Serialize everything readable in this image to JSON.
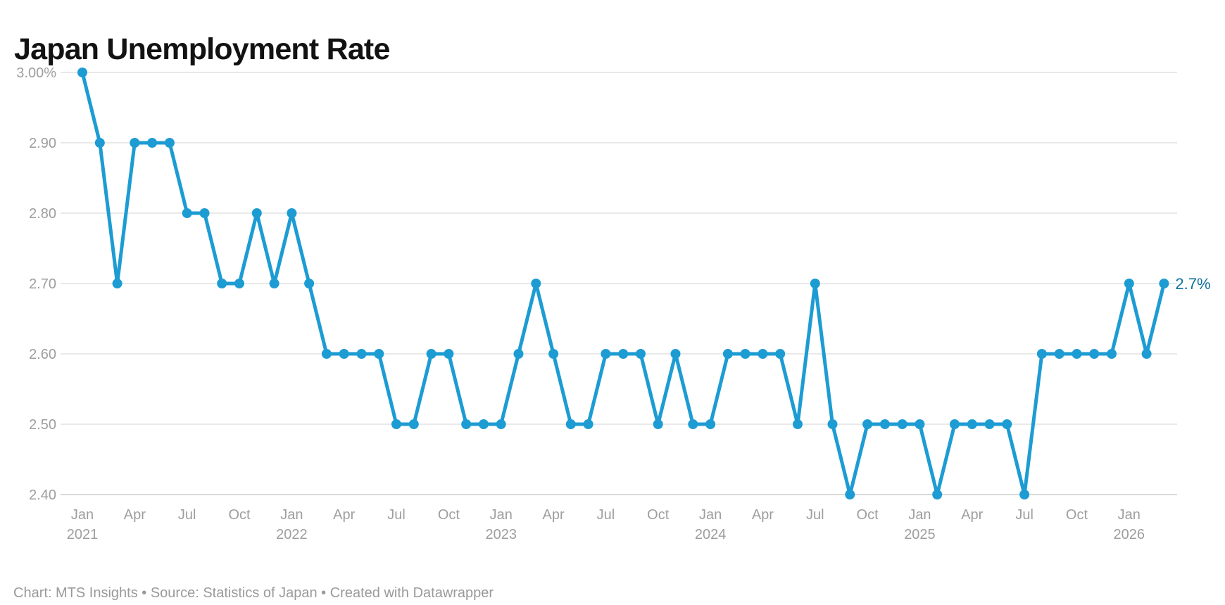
{
  "header": {
    "title": "Japan Unemployment Rate"
  },
  "footer": {
    "byline": "Chart: MTS Insights • Source: Statistics of Japan • Created with Datawrapper"
  },
  "colors": {
    "background": "#ffffff",
    "line": "#1d9cd3",
    "point": "#1d9cd3",
    "end_label": "#0f719f",
    "grid": "#e9e9e9",
    "grid_baseline": "#d9d9d9",
    "axis_text": "#9e9e9e",
    "title_text": "#121212",
    "footer_text": "#9a9a9a"
  },
  "chart_data": {
    "type": "line",
    "title": "Japan Unemployment Rate",
    "unit": "%",
    "grid": true,
    "legend": "none",
    "series_name": "Unemployment rate",
    "series_color": "#1d9cd3",
    "ylim": [
      2.4,
      3.0
    ],
    "end_label": "2.7%",
    "x": [
      "Jan 2021",
      "Feb 2021",
      "Mar 2021",
      "Apr 2021",
      "May 2021",
      "Jun 2021",
      "Jul 2021",
      "Aug 2021",
      "Sep 2021",
      "Oct 2021",
      "Nov 2021",
      "Dec 2021",
      "Jan 2022",
      "Feb 2022",
      "Mar 2022",
      "Apr 2022",
      "May 2022",
      "Jun 2022",
      "Jul 2022",
      "Aug 2022",
      "Sep 2022",
      "Oct 2022",
      "Nov 2022",
      "Dec 2022",
      "Jan 2023",
      "Feb 2023",
      "Mar 2023",
      "Apr 2023",
      "May 2023",
      "Jun 2023",
      "Jul 2023",
      "Aug 2023",
      "Sep 2023",
      "Oct 2023",
      "Nov 2023",
      "Dec 2023",
      "Jan 2024",
      "Feb 2024",
      "Mar 2024",
      "Apr 2024",
      "May 2024",
      "Jun 2024",
      "Jul 2024",
      "Aug 2024",
      "Sep 2024",
      "Oct 2024",
      "Nov 2024",
      "Dec 2024",
      "Jan 2025",
      "Feb 2025",
      "Mar 2025",
      "Apr 2025",
      "May 2025",
      "Jun 2025",
      "Jul 2025",
      "Aug 2025",
      "Sep 2025",
      "Oct 2025",
      "Nov 2025",
      "Dec 2025",
      "Jan 2026",
      "Feb 2026",
      "Mar 2026"
    ],
    "values": [
      3.0,
      2.9,
      2.7,
      2.9,
      2.9,
      2.9,
      2.8,
      2.8,
      2.7,
      2.7,
      2.8,
      2.7,
      2.8,
      2.7,
      2.6,
      2.6,
      2.6,
      2.6,
      2.5,
      2.5,
      2.6,
      2.6,
      2.5,
      2.5,
      2.5,
      2.6,
      2.7,
      2.6,
      2.5,
      2.5,
      2.6,
      2.6,
      2.6,
      2.5,
      2.6,
      2.5,
      2.5,
      2.6,
      2.6,
      2.6,
      2.6,
      2.5,
      2.7,
      2.5,
      2.4,
      2.5,
      2.5,
      2.5,
      2.5,
      2.4,
      2.5,
      2.5,
      2.5,
      2.5,
      2.4,
      2.6,
      2.6,
      2.6,
      2.6,
      2.6,
      2.7,
      2.6,
      2.7
    ],
    "y_ticks": [
      {
        "value": 3.0,
        "label": "3.00%"
      },
      {
        "value": 2.9,
        "label": "2.90"
      },
      {
        "value": 2.8,
        "label": "2.80"
      },
      {
        "value": 2.7,
        "label": "2.70"
      },
      {
        "value": 2.6,
        "label": "2.60"
      },
      {
        "value": 2.5,
        "label": "2.50"
      },
      {
        "value": 2.4,
        "label": "2.40"
      }
    ],
    "x_ticks": [
      {
        "index": 0,
        "month": "Jan",
        "year": "2021"
      },
      {
        "index": 3,
        "month": "Apr"
      },
      {
        "index": 6,
        "month": "Jul"
      },
      {
        "index": 9,
        "month": "Oct"
      },
      {
        "index": 12,
        "month": "Jan",
        "year": "2022"
      },
      {
        "index": 15,
        "month": "Apr"
      },
      {
        "index": 18,
        "month": "Jul"
      },
      {
        "index": 21,
        "month": "Oct"
      },
      {
        "index": 24,
        "month": "Jan",
        "year": "2023"
      },
      {
        "index": 27,
        "month": "Apr"
      },
      {
        "index": 30,
        "month": "Jul"
      },
      {
        "index": 33,
        "month": "Oct"
      },
      {
        "index": 36,
        "month": "Jan",
        "year": "2024"
      },
      {
        "index": 39,
        "month": "Apr"
      },
      {
        "index": 42,
        "month": "Jul"
      },
      {
        "index": 45,
        "month": "Oct"
      },
      {
        "index": 48,
        "month": "Jan",
        "year": "2025"
      },
      {
        "index": 51,
        "month": "Apr"
      },
      {
        "index": 54,
        "month": "Jul"
      },
      {
        "index": 57,
        "month": "Oct"
      },
      {
        "index": 60,
        "month": "Jan",
        "year": "2026"
      }
    ]
  }
}
